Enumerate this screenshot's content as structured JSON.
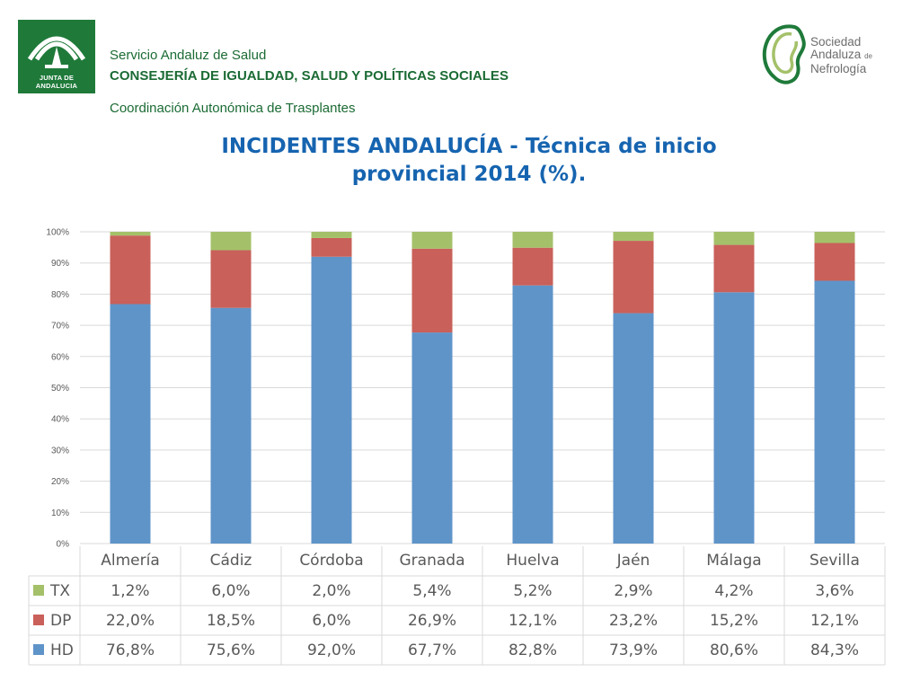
{
  "header": {
    "logo_left_text": "JUNTA DE ANDALUCIA",
    "line1": "Servicio Andaluz de Salud",
    "line2": "CONSEJERÍA DE IGUALDAD, SALUD Y POLÍTICAS SOCIALES",
    "line3": "Coordinación Autonómica de Trasplantes",
    "logo_right_line1": "Sociedad",
    "logo_right_line2": "Andaluza",
    "logo_right_de": "de",
    "logo_right_line3": "Nefrología"
  },
  "colors": {
    "logo_green": "#1f7a3a",
    "title_blue": "#1664b0",
    "HD": "#5f94c9",
    "DP": "#c9605a",
    "TX": "#a4c16a"
  },
  "title_line1": "INCIDENTES ANDALUCÍA - Técnica de inicio",
  "title_line2": "provincial 2014 (%).",
  "chart_data": {
    "type": "bar",
    "stacked": true,
    "categories": [
      "Almería",
      "Cádiz",
      "Córdoba",
      "Granada",
      "Huelva",
      "Jaén",
      "Málaga",
      "Sevilla"
    ],
    "series": [
      {
        "name": "HD",
        "values": [
          76.8,
          75.6,
          92.0,
          67.7,
          82.8,
          73.9,
          80.6,
          84.3
        ],
        "labels": [
          "76,8%",
          "75,6%",
          "92,0%",
          "67,7%",
          "82,8%",
          "73,9%",
          "80,6%",
          "84,3%"
        ]
      },
      {
        "name": "DP",
        "values": [
          22.0,
          18.5,
          6.0,
          26.9,
          12.1,
          23.2,
          15.2,
          12.1
        ],
        "labels": [
          "22,0%",
          "18,5%",
          "6,0%",
          "26,9%",
          "12,1%",
          "23,2%",
          "15,2%",
          "12,1%"
        ]
      },
      {
        "name": "TX",
        "values": [
          1.2,
          6.0,
          2.0,
          5.4,
          5.2,
          2.9,
          4.2,
          3.6
        ],
        "labels": [
          "1,2%",
          "6,0%",
          "2,0%",
          "5,4%",
          "5,2%",
          "2,9%",
          "4,2%",
          "3,6%"
        ]
      }
    ],
    "ylim": [
      0,
      100
    ],
    "yticks": [
      "0%",
      "10%",
      "20%",
      "30%",
      "40%",
      "50%",
      "60%",
      "70%",
      "80%",
      "90%",
      "100%"
    ],
    "grid": true,
    "data_table": true,
    "table_row_order": [
      "TX",
      "DP",
      "HD"
    ]
  }
}
